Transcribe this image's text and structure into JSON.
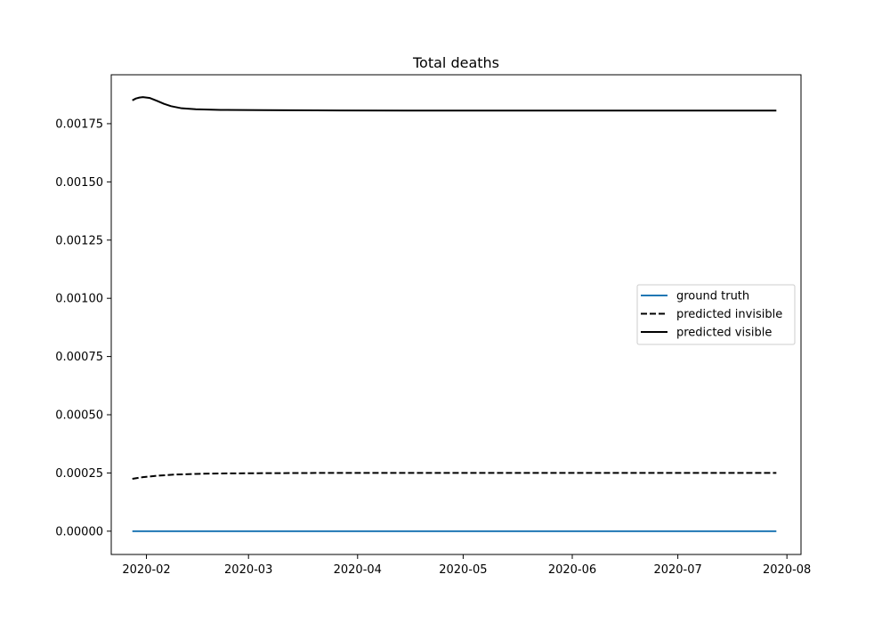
{
  "chart_data": {
    "type": "line",
    "title": "Total deaths",
    "xlabel": "",
    "ylabel": "",
    "x_axis_type": "date",
    "xlim": [
      "2020-01-22",
      "2020-08-05"
    ],
    "ylim": [
      -0.0001,
      0.00196
    ],
    "x_ticks": [
      "2020-02-01",
      "2020-03-01",
      "2020-04-01",
      "2020-05-01",
      "2020-06-01",
      "2020-07-01",
      "2020-08-01"
    ],
    "x_tick_labels": [
      "2020-02",
      "2020-03",
      "2020-04",
      "2020-05",
      "2020-06",
      "2020-07",
      "2020-08"
    ],
    "y_ticks": [
      0.0,
      0.00025,
      0.0005,
      0.00075,
      0.001,
      0.00125,
      0.0015,
      0.00175
    ],
    "y_tick_labels": [
      "0.00000",
      "0.00025",
      "0.00050",
      "0.00075",
      "0.00100",
      "0.00125",
      "0.00150",
      "0.00175"
    ],
    "grid": false,
    "legend_position": "center-right",
    "series": [
      {
        "name": "ground truth",
        "color": "#1f77b4",
        "linestyle": "solid",
        "points": [
          {
            "x": "2020-01-28",
            "y": 0.0
          },
          {
            "x": "2020-07-29",
            "y": 0.0
          }
        ]
      },
      {
        "name": "predicted invisible",
        "color": "#000000",
        "linestyle": "dashed",
        "points": [
          {
            "x": "2020-01-28",
            "y": 0.000225
          },
          {
            "x": "2020-01-31",
            "y": 0.000232
          },
          {
            "x": "2020-02-04",
            "y": 0.000238
          },
          {
            "x": "2020-02-09",
            "y": 0.000243
          },
          {
            "x": "2020-02-15",
            "y": 0.000246
          },
          {
            "x": "2020-02-22",
            "y": 0.000248
          },
          {
            "x": "2020-03-05",
            "y": 0.000249
          },
          {
            "x": "2020-03-20",
            "y": 0.00025
          },
          {
            "x": "2020-04-15",
            "y": 0.00025
          },
          {
            "x": "2020-07-29",
            "y": 0.00025
          }
        ]
      },
      {
        "name": "predicted visible",
        "color": "#000000",
        "linestyle": "solid",
        "points": [
          {
            "x": "2020-01-28",
            "y": 0.00185
          },
          {
            "x": "2020-01-29",
            "y": 0.001858
          },
          {
            "x": "2020-01-30",
            "y": 0.001862
          },
          {
            "x": "2020-01-31",
            "y": 0.001864
          },
          {
            "x": "2020-02-02",
            "y": 0.00186
          },
          {
            "x": "2020-02-04",
            "y": 0.001848
          },
          {
            "x": "2020-02-06",
            "y": 0.001835
          },
          {
            "x": "2020-02-08",
            "y": 0.001825
          },
          {
            "x": "2020-02-11",
            "y": 0.001816
          },
          {
            "x": "2020-02-15",
            "y": 0.001812
          },
          {
            "x": "2020-02-22",
            "y": 0.001809
          },
          {
            "x": "2020-03-05",
            "y": 0.001808
          },
          {
            "x": "2020-03-20",
            "y": 0.001807
          },
          {
            "x": "2020-04-15",
            "y": 0.001806
          },
          {
            "x": "2020-07-29",
            "y": 0.001806
          }
        ]
      }
    ]
  }
}
